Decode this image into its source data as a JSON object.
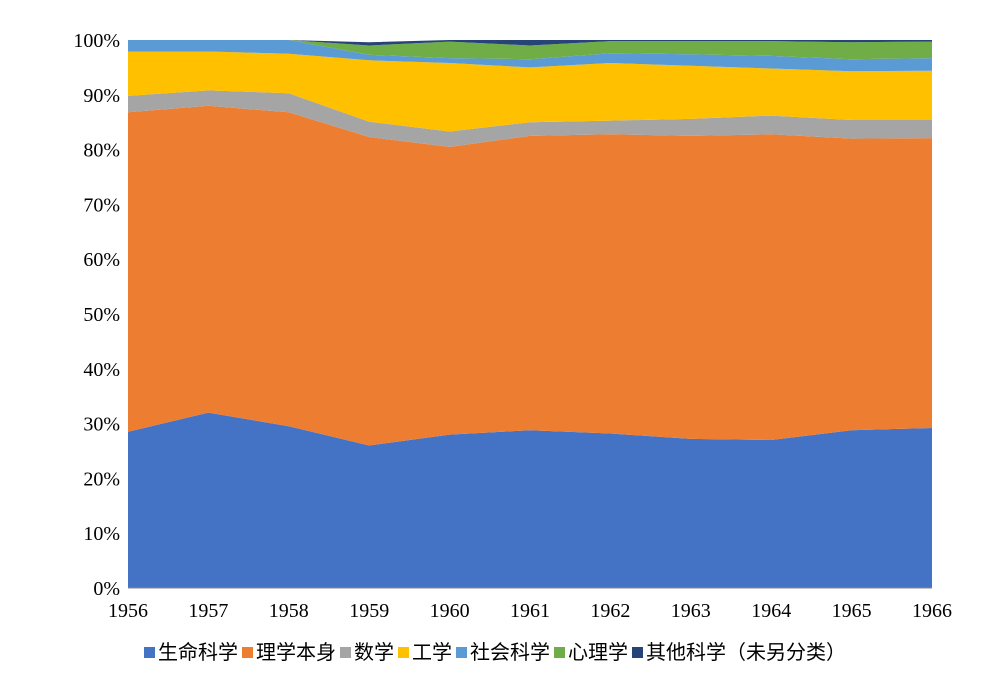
{
  "chart_data": {
    "type": "area",
    "stacked": true,
    "percent": true,
    "title": "",
    "xlabel": "",
    "ylabel": "",
    "x": [
      "1956",
      "1957",
      "1958",
      "1959",
      "1960",
      "1961",
      "1962",
      "1963",
      "1964",
      "1965",
      "1966"
    ],
    "ylim": [
      0,
      100
    ],
    "yticks": [
      "0%",
      "10%",
      "20%",
      "30%",
      "40%",
      "50%",
      "60%",
      "70%",
      "80%",
      "90%",
      "100%"
    ],
    "grid": false,
    "legend_position": "bottom",
    "series": [
      {
        "name": "生命科学",
        "color": "#4472C4",
        "values": [
          28.5,
          32.0,
          29.5,
          26.0,
          28.0,
          28.8,
          28.2,
          27.2,
          27.0,
          28.8,
          29.2
        ]
      },
      {
        "name": "理学本身",
        "color": "#ED7D31",
        "values": [
          58.3,
          56.0,
          57.3,
          56.3,
          52.5,
          53.7,
          54.6,
          55.3,
          55.8,
          53.2,
          52.9
        ]
      },
      {
        "name": "数学",
        "color": "#A5A5A5",
        "values": [
          3.0,
          2.8,
          3.5,
          2.8,
          2.8,
          2.5,
          2.5,
          3.1,
          3.4,
          3.4,
          3.3
        ]
      },
      {
        "name": "工学",
        "color": "#FFC000",
        "values": [
          8.1,
          7.1,
          7.2,
          11.2,
          12.5,
          10.0,
          10.5,
          9.7,
          8.6,
          8.9,
          9.0
        ]
      },
      {
        "name": "社会科学",
        "color": "#5B9BD5",
        "values": [
          2.1,
          2.1,
          2.5,
          1.0,
          0.9,
          1.5,
          1.8,
          2.1,
          2.3,
          2.2,
          2.3
        ]
      },
      {
        "name": "心理学",
        "color": "#70AD47",
        "values": [
          0.0,
          0.0,
          0.0,
          1.7,
          3.0,
          2.5,
          2.2,
          2.4,
          2.7,
          3.1,
          3.0
        ]
      },
      {
        "name": "其他科学（未另分类）",
        "color": "#264478",
        "values": [
          0.0,
          0.0,
          0.0,
          0.6,
          0.3,
          1.0,
          0.2,
          0.2,
          0.2,
          0.4,
          0.3
        ]
      }
    ]
  }
}
